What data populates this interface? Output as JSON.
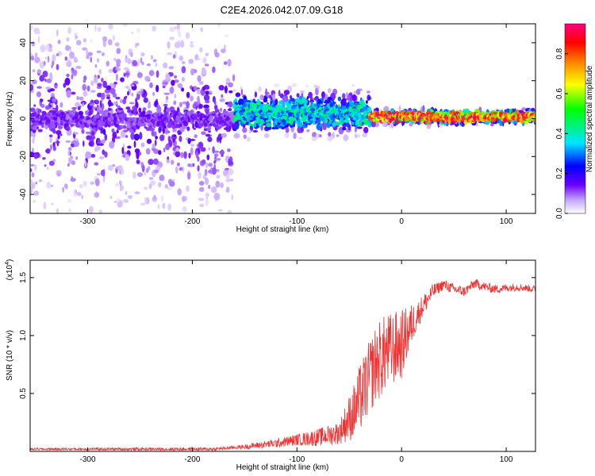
{
  "title": "C2E4.2026.042.07.09.G18",
  "chart_data": [
    {
      "type": "heatmap",
      "name": "spectrogram",
      "xlabel": "Height of straight line (km)",
      "ylabel": "Frequency (Hz)",
      "xlim": [
        -355,
        128
      ],
      "ylim": [
        -50,
        50
      ],
      "xticks": [
        -300,
        -200,
        -100,
        0,
        100
      ],
      "yticks": [
        -40,
        -20,
        0,
        20,
        40
      ],
      "colorbar": {
        "label": "Normalized spectral amplitude",
        "range": [
          0.0,
          0.95
        ],
        "ticks": [
          0.0,
          0.2,
          0.4,
          0.6,
          0.8
        ]
      },
      "ridge": {
        "description_segments": [
          {
            "x": [
              -355,
              -160
            ],
            "center_freq": 0,
            "spread_hz": 45,
            "peak_amp": 0.15
          },
          {
            "x": [
              -160,
              -30
            ],
            "center_freq": 3,
            "spread_hz": 10,
            "peak_amp": 0.45
          },
          {
            "x": [
              -30,
              128
            ],
            "center_freq": 1,
            "spread_hz": 3,
            "peak_amp": 0.95
          }
        ]
      }
    },
    {
      "type": "line",
      "name": "snr",
      "xlabel": "Height of straight line (km)",
      "ylabel": "SNR (10 * v/v)",
      "scale_label": "(x10",
      "scale_exp": "4",
      "xlim": [
        -355,
        128
      ],
      "ylim": [
        0,
        1.65
      ],
      "xticks": [
        -300,
        -200,
        -100,
        0,
        100
      ],
      "yticks": [
        "0.5",
        "1.0",
        "1.5"
      ],
      "color": "#ee3333",
      "series": [
        {
          "x": -355,
          "y": 0.02
        },
        {
          "x": -250,
          "y": 0.02
        },
        {
          "x": -180,
          "y": 0.02
        },
        {
          "x": -150,
          "y": 0.04
        },
        {
          "x": -120,
          "y": 0.07
        },
        {
          "x": -100,
          "y": 0.1
        },
        {
          "x": -80,
          "y": 0.12
        },
        {
          "x": -60,
          "y": 0.16
        },
        {
          "x": -45,
          "y": 0.35
        },
        {
          "x": -35,
          "y": 0.55
        },
        {
          "x": -25,
          "y": 0.75
        },
        {
          "x": -15,
          "y": 0.85
        },
        {
          "x": -5,
          "y": 0.9
        },
        {
          "x": 0,
          "y": 0.92
        },
        {
          "x": 10,
          "y": 1.1
        },
        {
          "x": 20,
          "y": 1.25
        },
        {
          "x": 30,
          "y": 1.38
        },
        {
          "x": 40,
          "y": 1.44
        },
        {
          "x": 50,
          "y": 1.4
        },
        {
          "x": 60,
          "y": 1.38
        },
        {
          "x": 70,
          "y": 1.45
        },
        {
          "x": 80,
          "y": 1.42
        },
        {
          "x": 90,
          "y": 1.4
        },
        {
          "x": 100,
          "y": 1.41
        },
        {
          "x": 110,
          "y": 1.42
        },
        {
          "x": 128,
          "y": 1.4
        }
      ],
      "noise_amplitude": [
        {
          "x": -355,
          "a": 0.01
        },
        {
          "x": -160,
          "a": 0.015
        },
        {
          "x": -100,
          "a": 0.05
        },
        {
          "x": -60,
          "a": 0.1
        },
        {
          "x": -40,
          "a": 0.3
        },
        {
          "x": -20,
          "a": 0.35
        },
        {
          "x": 0,
          "a": 0.3
        },
        {
          "x": 15,
          "a": 0.12
        },
        {
          "x": 35,
          "a": 0.05
        },
        {
          "x": 128,
          "a": 0.03
        }
      ]
    }
  ]
}
